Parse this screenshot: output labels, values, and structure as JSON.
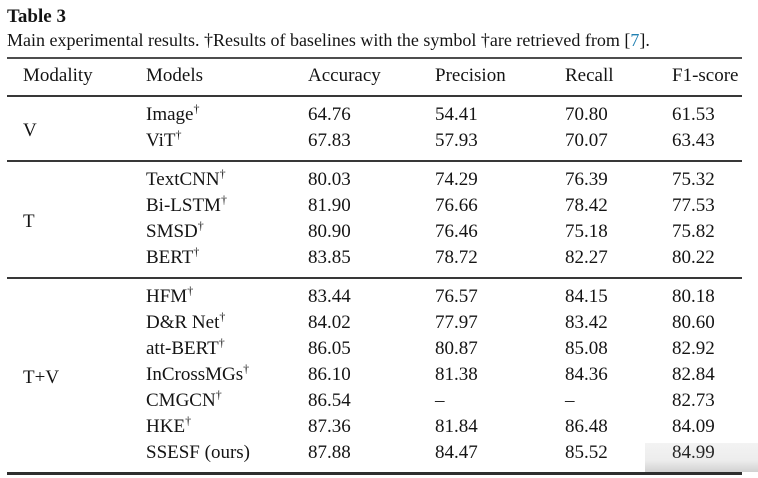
{
  "title": "Table 3",
  "caption": {
    "text": "Main experimental results. †Results of baselines with the symbol †are retrieved from",
    "cite_open": "[",
    "cite_number": "7",
    "cite_close": "]."
  },
  "colors": {
    "citation_link": "#2080b2",
    "text": "#141414",
    "rule_dark": "#383838"
  },
  "table": {
    "columns": [
      "Modality",
      "Models",
      "Accuracy",
      "Precision",
      "Recall",
      "F1-score"
    ],
    "groups": [
      {
        "modality": "V",
        "rows": [
          {
            "model": "Image",
            "dagger": "†",
            "values": [
              "64.76",
              "54.41",
              "70.80",
              "61.53"
            ]
          },
          {
            "model": "ViT",
            "dagger": "†",
            "values": [
              "67.83",
              "57.93",
              "70.07",
              "63.43"
            ]
          }
        ]
      },
      {
        "modality": "T",
        "rows": [
          {
            "model": "TextCNN",
            "dagger": "†",
            "values": [
              "80.03",
              "74.29",
              "76.39",
              "75.32"
            ]
          },
          {
            "model": "Bi-LSTM",
            "dagger": "†",
            "values": [
              "81.90",
              "76.66",
              "78.42",
              "77.53"
            ]
          },
          {
            "model": "SMSD",
            "dagger": "†",
            "values": [
              "80.90",
              "76.46",
              "75.18",
              "75.82"
            ]
          },
          {
            "model": "BERT",
            "dagger": "†",
            "values": [
              "83.85",
              "78.72",
              "82.27",
              "80.22"
            ]
          }
        ]
      },
      {
        "modality": "T+V",
        "rows": [
          {
            "model": "HFM",
            "dagger": "†",
            "values": [
              "83.44",
              "76.57",
              "84.15",
              "80.18"
            ]
          },
          {
            "model": "D&R Net",
            "dagger": "†",
            "values": [
              "84.02",
              "77.97",
              "83.42",
              "80.60"
            ]
          },
          {
            "model": "att-BERT",
            "dagger": "†",
            "values": [
              "86.05",
              "80.87",
              "85.08",
              "82.92"
            ]
          },
          {
            "model": "InCrossMGs",
            "dagger": "†",
            "values": [
              "86.10",
              "81.38",
              "84.36",
              "82.84"
            ]
          },
          {
            "model": "CMGCN",
            "dagger": "†",
            "values": [
              "86.54",
              "–",
              "–",
              "82.73"
            ]
          },
          {
            "model": "HKE",
            "dagger": "†",
            "values": [
              "87.36",
              "81.84",
              "86.48",
              "84.09"
            ]
          },
          {
            "model": "SSESF (ours)",
            "dagger": "",
            "values": [
              "87.88",
              "84.47",
              "85.52",
              "84.99"
            ]
          }
        ]
      }
    ]
  }
}
